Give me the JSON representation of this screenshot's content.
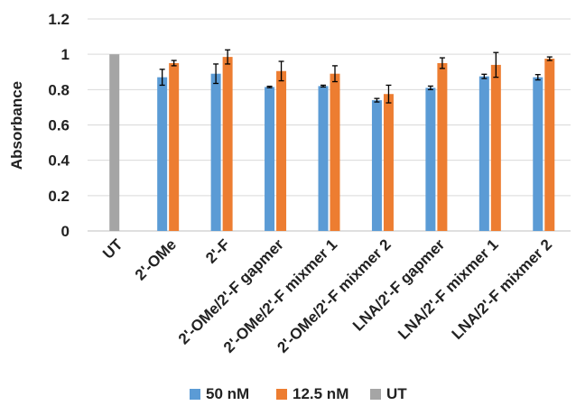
{
  "chart_data": {
    "type": "bar",
    "title": "",
    "xlabel": "",
    "ylabel": "Absorbance",
    "ylim": [
      0,
      1.2
    ],
    "yticks": [
      0,
      0.2,
      0.4,
      0.6,
      0.8,
      1,
      1.2
    ],
    "ytick_labels": [
      "0",
      "0.2",
      "0.4",
      "0.6",
      "0.8",
      "1",
      "1.2"
    ],
    "grid": true,
    "legend_position": "bottom",
    "categories": [
      "UT",
      "2'-OMe",
      "2'-F",
      "2'-OMe/2'-F gapmer",
      "2'-OMe/2'-F mixmer 1",
      "2'-OMe/2'-F mixmer 2",
      "LNA/2'-F gapmer",
      "LNA/2'-F mixmer 1",
      "LNA/2'-F mixmer 2"
    ],
    "series": [
      {
        "name": "50 nM",
        "color": "#5b9bd5",
        "values": [
          null,
          0.87,
          0.89,
          0.815,
          0.82,
          0.74,
          0.81,
          0.875,
          0.87
        ],
        "errors": [
          null,
          0.045,
          0.055,
          0.004,
          0.005,
          0.01,
          0.01,
          0.012,
          0.015
        ]
      },
      {
        "name": "12.5 nM",
        "color": "#ed7d31",
        "values": [
          null,
          0.95,
          0.985,
          0.905,
          0.89,
          0.775,
          0.95,
          0.94,
          0.975
        ],
        "errors": [
          null,
          0.015,
          0.04,
          0.055,
          0.045,
          0.05,
          0.03,
          0.07,
          0.01
        ]
      },
      {
        "name": "UT",
        "color": "#a5a5a5",
        "values": [
          1,
          null,
          null,
          null,
          null,
          null,
          null,
          null,
          null
        ],
        "errors": [
          null,
          null,
          null,
          null,
          null,
          null,
          null,
          null,
          null
        ]
      }
    ]
  }
}
